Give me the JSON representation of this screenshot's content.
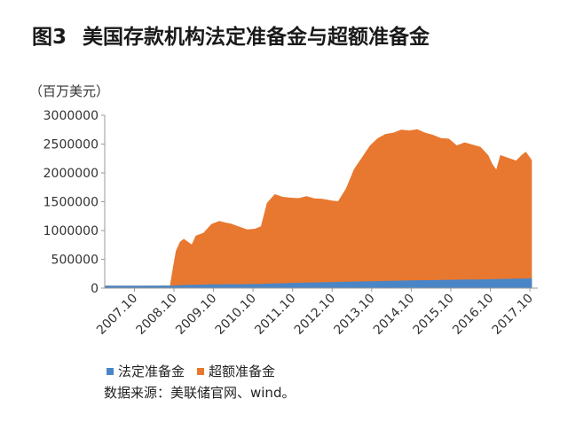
{
  "header": {
    "figure_label": "图3",
    "title": "美国存款机构法定准备金与超额准备金"
  },
  "unit_label": "（百万美元）",
  "source_note": "数据来源：美联储官网、wind。",
  "colors": {
    "required": "#4a86c7",
    "excess": "#e8782f",
    "axis": "#999999"
  },
  "chart_data": {
    "type": "area",
    "stacked": true,
    "title": "美国存款机构法定准备金与超额准备金",
    "ylabel": "（百万美元）",
    "ylim": [
      0,
      3000000
    ],
    "xlim": [
      2007.0,
      2017.95
    ],
    "yticks": [
      0,
      500000,
      1000000,
      1500000,
      2000000,
      2500000,
      3000000
    ],
    "ytick_labels": [
      "0",
      "500000",
      "1000000",
      "1500000",
      "2000000",
      "2500000",
      "3000000"
    ],
    "xticks": [
      2007.75,
      2008.75,
      2009.75,
      2010.75,
      2011.75,
      2012.75,
      2013.75,
      2014.75,
      2015.75,
      2016.75,
      2017.75
    ],
    "xtick_labels": [
      "2007.10",
      "2008.10",
      "2009.10",
      "2010.10",
      "2011.10",
      "2012.10",
      "2013.10",
      "2014.10",
      "2015.10",
      "2016.10",
      "2017.10"
    ],
    "legend_position": "bottom",
    "series": [
      {
        "name": "法定准备金",
        "x": [
          2007.0,
          2008.0,
          2008.75,
          2009.0,
          2009.75,
          2010.75,
          2011.75,
          2012.75,
          2013.75,
          2014.75,
          2015.75,
          2016.75,
          2017.8
        ],
        "values": [
          43000,
          43000,
          45000,
          55000,
          65000,
          70000,
          90000,
          105000,
          120000,
          135000,
          145000,
          155000,
          170000
        ]
      },
      {
        "name": "超额准备金",
        "x": [
          2007.0,
          2008.65,
          2008.72,
          2008.8,
          2008.9,
          2009.0,
          2009.2,
          2009.3,
          2009.5,
          2009.7,
          2009.9,
          2010.0,
          2010.2,
          2010.4,
          2010.6,
          2010.8,
          2010.95,
          2011.1,
          2011.3,
          2011.5,
          2011.7,
          2011.9,
          2012.1,
          2012.3,
          2012.5,
          2012.7,
          2012.9,
          2013.1,
          2013.3,
          2013.5,
          2013.7,
          2013.9,
          2014.1,
          2014.3,
          2014.5,
          2014.7,
          2014.9,
          2015.1,
          2015.3,
          2015.5,
          2015.7,
          2015.9,
          2016.1,
          2016.3,
          2016.5,
          2016.7,
          2016.8,
          2016.9,
          2017.0,
          2017.2,
          2017.4,
          2017.55,
          2017.65,
          2017.8
        ],
        "values": [
          0,
          0,
          300000,
          600000,
          750000,
          800000,
          700000,
          850000,
          900000,
          1050000,
          1100000,
          1080000,
          1050000,
          1000000,
          950000,
          960000,
          1000000,
          1400000,
          1550000,
          1500000,
          1480000,
          1470000,
          1500000,
          1460000,
          1450000,
          1420000,
          1400000,
          1620000,
          1950000,
          2150000,
          2350000,
          2480000,
          2550000,
          2570000,
          2620000,
          2600000,
          2620000,
          2560000,
          2520000,
          2460000,
          2450000,
          2330000,
          2380000,
          2340000,
          2300000,
          2150000,
          2000000,
          1900000,
          2150000,
          2100000,
          2050000,
          2150000,
          2200000,
          2050000
        ]
      }
    ]
  }
}
